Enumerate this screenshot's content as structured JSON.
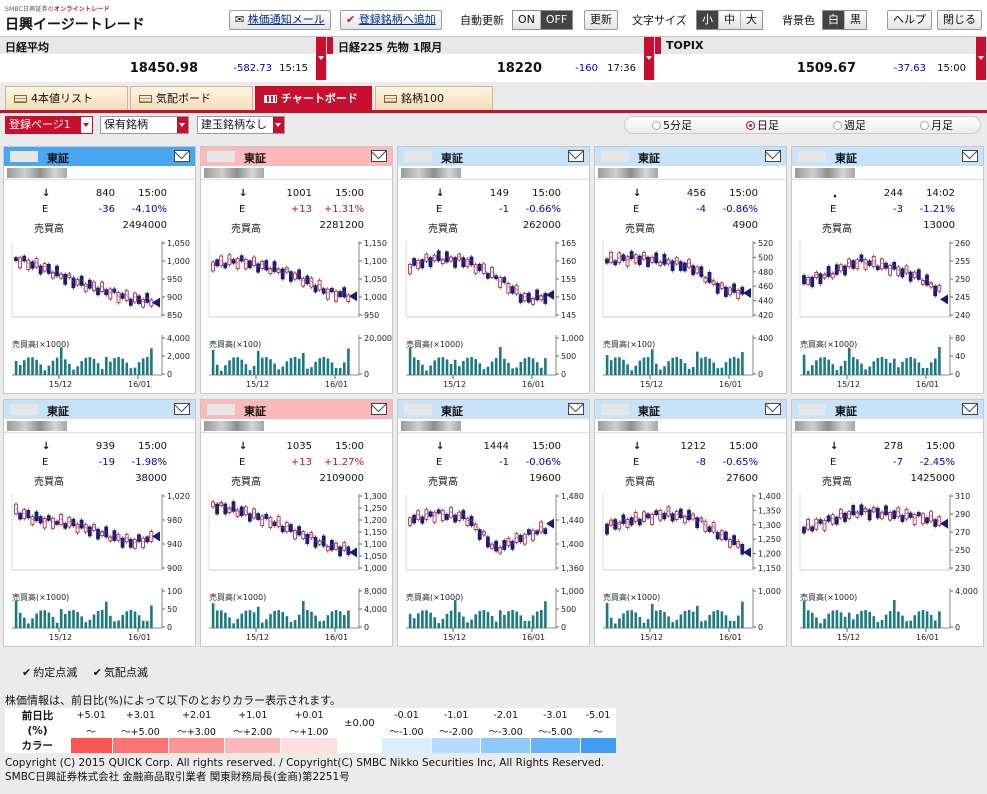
{
  "header": {
    "logo_small": "SMBC日興証券の",
    "logo_small_red": "オンライントレード",
    "logo_main": "日興イージートレード",
    "alert_mail": "株価通知メール",
    "add_fav": "登録銘柄へ追加",
    "auto_refresh_label": "自動更新",
    "auto_on": "ON",
    "auto_off": "OFF",
    "refresh": "更新",
    "font_size_label": "文字サイズ",
    "size_small": "小",
    "size_mid": "中",
    "size_large": "大",
    "bg_label": "背景色",
    "bg_white": "白",
    "bg_black": "黒",
    "help": "ヘルプ",
    "close": "閉じる"
  },
  "indices": [
    {
      "name": "日経平均",
      "value": "18450.98",
      "change": "-582.73",
      "time": "15:15"
    },
    {
      "name": "日経225 先物 1限月",
      "value": "18220",
      "change": "-160",
      "time": "17:36"
    },
    {
      "name": "TOPIX",
      "value": "1509.67",
      "change": "-37.63",
      "time": "15:00"
    }
  ],
  "tabs": [
    "4本値リスト",
    "気配ボード",
    "チャートボード",
    "銘柄100"
  ],
  "filters": {
    "page": "登録ページ1",
    "holding": "保有銘柄",
    "margin": "建玉銘柄なし"
  },
  "periods": [
    "5分足",
    "日足",
    "週足",
    "月足"
  ],
  "cards": [
    {
      "ex": "東証",
      "head": "blue",
      "arrow": "↓",
      "price": "840",
      "time": "15:00",
      "e": "E",
      "chg": "-36",
      "pct": "-4.10%",
      "vol_label": "売買高",
      "vol": "2494000",
      "yticks": [
        "1,050",
        "1,000",
        "950",
        "900",
        "850"
      ],
      "vticks": [
        "4,000",
        "2,000",
        "0"
      ],
      "vunit": "売買高(×1000)",
      "xl": [
        "15/12",
        "16/01"
      ]
    },
    {
      "ex": "東証",
      "head": "pink",
      "arrow": "↓",
      "price": "1001",
      "time": "15:00",
      "e": "E",
      "chg": "+13",
      "pct": "+1.31%",
      "vol_label": "売買高",
      "vol": "2281200",
      "yticks": [
        "1,150",
        "1,100",
        "1,050",
        "1,000",
        "950"
      ],
      "vticks": [
        "20,000",
        "0"
      ],
      "vunit": "売買高(×100)",
      "xl": [
        "15/12",
        "16/01"
      ]
    },
    {
      "ex": "東証",
      "head": "lblue",
      "arrow": "↓",
      "price": "149",
      "time": "15:00",
      "e": "E",
      "chg": "-1",
      "pct": "-0.66%",
      "vol_label": "売買高",
      "vol": "262000",
      "yticks": [
        "165",
        "160",
        "155",
        "150",
        "145"
      ],
      "vticks": [
        "1,000",
        "500",
        "0"
      ],
      "vunit": "売買高(×1000)",
      "xl": [
        "15/12",
        "16/01"
      ]
    },
    {
      "ex": "東証",
      "head": "lblue",
      "arrow": "↓",
      "price": "456",
      "time": "15:00",
      "e": "E",
      "chg": "-4",
      "pct": "-0.86%",
      "vol_label": "売買高",
      "vol": "4900",
      "yticks": [
        "520",
        "500",
        "480",
        "460",
        "440",
        "420"
      ],
      "vticks": [
        "400",
        "0"
      ],
      "vunit": "売買高(×100)",
      "xl": [
        "15/12",
        "16/01"
      ]
    },
    {
      "ex": "東証",
      "head": "lblue",
      "arrow": "・",
      "price": "244",
      "time": "14:02",
      "e": "E",
      "chg": "-3",
      "pct": "-1.21%",
      "vol_label": "売買高",
      "vol": "13000",
      "yticks": [
        "260",
        "255",
        "250",
        "245",
        "240"
      ],
      "vticks": [
        "80",
        "40",
        "0"
      ],
      "vunit": "売買高(×1000)",
      "xl": [
        "15/12",
        "16/01"
      ]
    },
    {
      "ex": "東証",
      "head": "lblue",
      "arrow": "↓",
      "price": "939",
      "time": "15:00",
      "e": "E",
      "chg": "-19",
      "pct": "-1.98%",
      "vol_label": "売買高",
      "vol": "38000",
      "yticks": [
        "1,020",
        "980",
        "940",
        "900"
      ],
      "vticks": [
        "100",
        "50",
        "0"
      ],
      "vunit": "売買高(×1000)",
      "xl": [
        "15/12",
        "16/01"
      ]
    },
    {
      "ex": "東証",
      "head": "pink",
      "arrow": "↓",
      "price": "1035",
      "time": "15:00",
      "e": "E",
      "chg": "+13",
      "pct": "+1.27%",
      "vol_label": "売買高",
      "vol": "2109000",
      "yticks": [
        "1,300",
        "1,250",
        "1,200",
        "1,150",
        "1,100",
        "1,050",
        "1,000"
      ],
      "vticks": [
        "8,000",
        "4,000",
        "0"
      ],
      "vunit": "売買高(×1000)",
      "xl": [
        "15/12",
        "16/01"
      ]
    },
    {
      "ex": "東証",
      "head": "lblue",
      "arrow": "↓",
      "price": "1444",
      "time": "15:00",
      "e": "E",
      "chg": "-1",
      "pct": "-0.06%",
      "vol_label": "売買高",
      "vol": "19600",
      "yticks": [
        "1,480",
        "1,440",
        "1,400",
        "1,360"
      ],
      "vticks": [
        "1,000",
        "500",
        "0"
      ],
      "vunit": "売買高(×1000)",
      "xl": [
        "15/12",
        "16/01"
      ]
    },
    {
      "ex": "東証",
      "head": "lblue",
      "arrow": "↓",
      "price": "1212",
      "time": "15:00",
      "e": "E",
      "chg": "-8",
      "pct": "-0.65%",
      "vol_label": "売買高",
      "vol": "27600",
      "yticks": [
        "1,400",
        "1,350",
        "1,300",
        "1,250",
        "1,200",
        "1,150"
      ],
      "vticks": [
        "1,000",
        "0"
      ],
      "vunit": "売買高(×1000)",
      "xl": [
        "15/12",
        "16/01"
      ]
    },
    {
      "ex": "東証",
      "head": "lblue",
      "arrow": "↓",
      "price": "278",
      "time": "15:00",
      "e": "E",
      "chg": "-7",
      "pct": "-2.45%",
      "vol_label": "売買高",
      "vol": "1425000",
      "yticks": [
        "310",
        "290",
        "270",
        "250",
        "230"
      ],
      "vticks": [
        "4,000",
        "0"
      ],
      "vunit": "売買高(×1000)",
      "xl": [
        "15/12",
        "16/01"
      ]
    }
  ],
  "legend": {
    "c1": "約定点滅",
    "c2": "気配点滅"
  },
  "colortable": {
    "note": "株価情報は、前日比(%)によって以下のとおりカラー表示されます。",
    "h1": "前日比",
    "h2": "(%)",
    "h3": "カラー",
    "top": [
      "+5.01",
      "+3.01",
      "+2.01",
      "+1.01",
      "+0.01",
      "±0.00",
      "-0.01",
      "-1.01",
      "-2.01",
      "-3.01",
      "-5.01"
    ],
    "bot": [
      "〜",
      "〜+5.00",
      "〜+3.00",
      "〜+2.00",
      "〜+1.00",
      "",
      "〜-1.00",
      "〜-2.00",
      "〜-3.00",
      "〜-5.00",
      "〜"
    ],
    "colors": [
      "#ff5252",
      "#ff7272",
      "#ff9595",
      "#ffb8b8",
      "#ffdede",
      "#ffffff",
      "#d9eeff",
      "#b6dcff",
      "#8ec9ff",
      "#64b3fb",
      "#3f9cf1"
    ]
  },
  "copyright": [
    "Copyright (C) 2015 QUICK Corp. All rights reserved. / Copyright(C) SMBC Nikko Securities Inc, All Rights Reserved.",
    "SMBC日興証券株式会社 金融商品取引業者 関東財務局長(金商)第2251号"
  ]
}
